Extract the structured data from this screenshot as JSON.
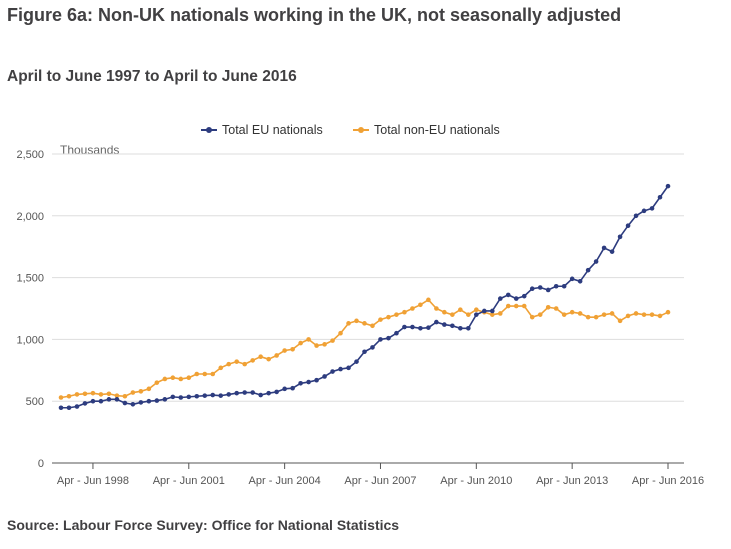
{
  "title": "Figure 6a: Non-UK nationals working in the UK, not seasonally adjusted",
  "subtitle": "April to June 1997 to April to June 2016",
  "source": "Source: Labour Force Survey: Office for National Statistics",
  "chart_data": {
    "type": "line",
    "unit_label": "Thousands",
    "ylim": [
      0,
      2500
    ],
    "y_ticks": [
      "0",
      "500",
      "1,000",
      "1,500",
      "2,000",
      "2,500"
    ],
    "y_tick_values": [
      0,
      500,
      1000,
      1500,
      2000,
      2500
    ],
    "x_tick_labels": [
      "Apr - Jun 1998",
      "Apr - Jun 2001",
      "Apr - Jun 2004",
      "Apr - Jun 2007",
      "Apr - Jun 2010",
      "Apr - Jun 2013",
      "Apr - Jun 2016"
    ],
    "x_tick_index": [
      4,
      16,
      28,
      40,
      52,
      64,
      76
    ],
    "x_range": "Apr - Jun 1997 to Apr - Jun 2016 (quarterly)",
    "grid": true,
    "legend_position": "top-center",
    "series": [
      {
        "name": "Total EU nationals",
        "color": "#2d3c7f",
        "values": [
          447,
          447,
          457,
          482,
          500,
          500,
          515,
          515,
          485,
          475,
          490,
          500,
          505,
          515,
          535,
          530,
          535,
          540,
          545,
          550,
          545,
          555,
          565,
          570,
          570,
          550,
          565,
          575,
          600,
          605,
          645,
          655,
          670,
          700,
          740,
          760,
          770,
          820,
          900,
          935,
          1000,
          1010,
          1050,
          1100,
          1100,
          1090,
          1095,
          1140,
          1120,
          1110,
          1090,
          1090,
          1200,
          1230,
          1230,
          1330,
          1360,
          1330,
          1350,
          1410,
          1420,
          1400,
          1430,
          1430,
          1490,
          1470,
          1560,
          1630,
          1740,
          1710,
          1830,
          1920,
          2000,
          2040,
          2060,
          2150,
          2240
        ]
      },
      {
        "name": "Total non-EU nationals",
        "color": "#f0a135",
        "values": [
          530,
          540,
          555,
          560,
          565,
          555,
          560,
          545,
          540,
          570,
          580,
          600,
          650,
          680,
          690,
          680,
          690,
          720,
          720,
          720,
          770,
          800,
          820,
          800,
          830,
          860,
          840,
          870,
          910,
          920,
          970,
          1000,
          950,
          960,
          990,
          1050,
          1130,
          1150,
          1130,
          1110,
          1160,
          1180,
          1200,
          1220,
          1250,
          1280,
          1320,
          1250,
          1220,
          1200,
          1240,
          1200,
          1240,
          1220,
          1200,
          1210,
          1270,
          1270,
          1270,
          1180,
          1200,
          1260,
          1250,
          1200,
          1220,
          1210,
          1180,
          1180,
          1200,
          1210,
          1150,
          1190,
          1210,
          1200,
          1200,
          1190,
          1220
        ]
      }
    ]
  }
}
